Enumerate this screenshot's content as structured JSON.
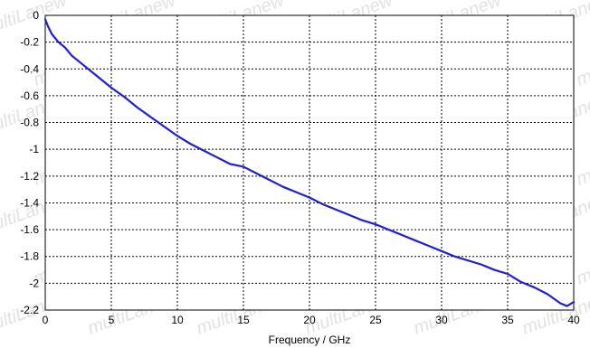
{
  "watermark_text": "multiLanew",
  "chart_data": {
    "type": "line",
    "title": "",
    "xlabel": "Frequency / GHz",
    "ylabel": "",
    "xlim": [
      0,
      40
    ],
    "ylim": [
      -2.2,
      0
    ],
    "x_ticks": [
      0,
      5,
      10,
      15,
      20,
      25,
      30,
      35,
      40
    ],
    "y_ticks": [
      0,
      -0.2,
      -0.4,
      -0.6,
      -0.8,
      -1,
      -1.2,
      -1.4,
      -1.6,
      -1.8,
      -2,
      -2.2
    ],
    "x_tick_labels": [
      "0",
      "5",
      "10",
      "15",
      "20",
      "25",
      "30",
      "35",
      "40"
    ],
    "y_tick_labels": [
      "0",
      "-0.2",
      "-0.4",
      "-0.6",
      "-0.8",
      "-1",
      "-1.2",
      "-1.4",
      "-1.6",
      "-1.8",
      "-2",
      "-2.2"
    ],
    "grid": true,
    "line_color": "#1f1fd0",
    "series": [
      {
        "x": [
          0,
          0.2,
          0.5,
          1,
          1.5,
          2,
          3,
          4,
          5,
          6,
          7,
          8,
          9,
          10,
          11,
          12,
          13,
          14,
          15,
          16,
          17,
          18,
          19,
          20,
          21,
          22,
          23,
          24,
          25,
          26,
          27,
          28,
          29,
          30,
          31,
          32,
          33,
          34,
          35,
          36,
          37,
          38,
          39,
          39.5,
          40
        ],
        "y": [
          -0.03,
          -0.08,
          -0.14,
          -0.2,
          -0.24,
          -0.3,
          -0.38,
          -0.46,
          -0.54,
          -0.61,
          -0.69,
          -0.76,
          -0.83,
          -0.9,
          -0.96,
          -1.01,
          -1.06,
          -1.11,
          -1.13,
          -1.18,
          -1.23,
          -1.28,
          -1.32,
          -1.36,
          -1.41,
          -1.45,
          -1.49,
          -1.53,
          -1.56,
          -1.6,
          -1.64,
          -1.68,
          -1.72,
          -1.76,
          -1.8,
          -1.83,
          -1.86,
          -1.9,
          -1.93,
          -1.99,
          -2.03,
          -2.08,
          -2.15,
          -2.17,
          -2.14
        ]
      }
    ]
  }
}
